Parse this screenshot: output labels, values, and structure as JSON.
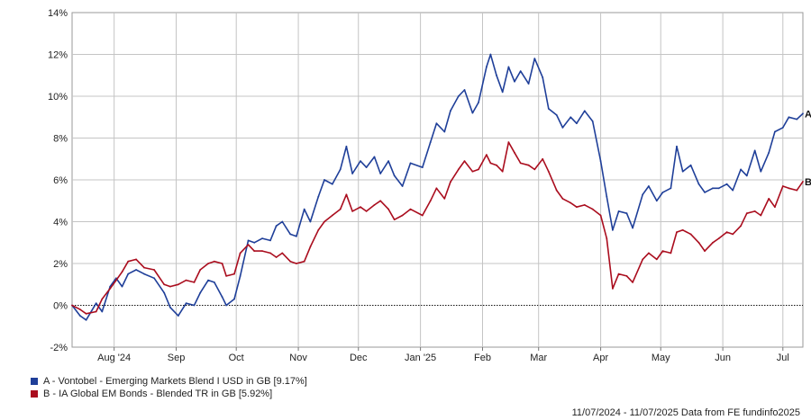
{
  "chart_data": {
    "type": "line",
    "y_unit": "%",
    "ylim": [
      -2,
      14
    ],
    "yticks": [
      "-2%",
      "0%",
      "2%",
      "4%",
      "6%",
      "8%",
      "10%",
      "12%",
      "14%"
    ],
    "x_start": "11/07/2024",
    "x_end": "11/07/2025",
    "xticks": [
      {
        "label": "Aug '24",
        "date": "2024-08-01"
      },
      {
        "label": "Sep",
        "date": "2024-09-01"
      },
      {
        "label": "Oct",
        "date": "2024-10-01"
      },
      {
        "label": "Nov",
        "date": "2024-11-01"
      },
      {
        "label": "Dec",
        "date": "2024-12-01"
      },
      {
        "label": "Jan '25",
        "date": "2025-01-01"
      },
      {
        "label": "Feb",
        "date": "2025-02-01"
      },
      {
        "label": "Mar",
        "date": "2025-03-01"
      },
      {
        "label": "Apr",
        "date": "2025-04-01"
      },
      {
        "label": "May",
        "date": "2025-05-01"
      },
      {
        "label": "Jun",
        "date": "2025-06-01"
      },
      {
        "label": "Jul",
        "date": "2025-07-01"
      }
    ],
    "grid": true,
    "series": [
      {
        "name": "A - Vontobel - Emerging Markets Blend I USD in GB [9.17%]",
        "end_label": "A",
        "color": "#1f3f99",
        "points": [
          [
            "2024-07-11",
            0
          ],
          [
            "2024-07-15",
            -0.5
          ],
          [
            "2024-07-18",
            -0.7
          ],
          [
            "2024-07-23",
            0.1
          ],
          [
            "2024-07-26",
            -0.3
          ],
          [
            "2024-07-30",
            0.9
          ],
          [
            "2024-08-02",
            1.3
          ],
          [
            "2024-08-05",
            0.9
          ],
          [
            "2024-08-08",
            1.5
          ],
          [
            "2024-08-12",
            1.7
          ],
          [
            "2024-08-16",
            1.5
          ],
          [
            "2024-08-21",
            1.3
          ],
          [
            "2024-08-26",
            0.6
          ],
          [
            "2024-08-29",
            -0.1
          ],
          [
            "2024-09-02",
            -0.5
          ],
          [
            "2024-09-06",
            0.1
          ],
          [
            "2024-09-10",
            0.0
          ],
          [
            "2024-09-13",
            0.6
          ],
          [
            "2024-09-17",
            1.2
          ],
          [
            "2024-09-20",
            1.1
          ],
          [
            "2024-09-24",
            0.4
          ],
          [
            "2024-09-26",
            0.0
          ],
          [
            "2024-09-30",
            0.3
          ],
          [
            "2024-10-03",
            1.4
          ],
          [
            "2024-10-07",
            3.1
          ],
          [
            "2024-10-10",
            3.0
          ],
          [
            "2024-10-14",
            3.2
          ],
          [
            "2024-10-18",
            3.1
          ],
          [
            "2024-10-21",
            3.8
          ],
          [
            "2024-10-24",
            4.0
          ],
          [
            "2024-10-28",
            3.4
          ],
          [
            "2024-10-31",
            3.3
          ],
          [
            "2024-11-04",
            4.6
          ],
          [
            "2024-11-07",
            4.0
          ],
          [
            "2024-11-11",
            5.2
          ],
          [
            "2024-11-14",
            6.0
          ],
          [
            "2024-11-18",
            5.8
          ],
          [
            "2024-11-22",
            6.5
          ],
          [
            "2024-11-25",
            7.6
          ],
          [
            "2024-11-28",
            6.3
          ],
          [
            "2024-12-02",
            6.9
          ],
          [
            "2024-12-05",
            6.6
          ],
          [
            "2024-12-09",
            7.1
          ],
          [
            "2024-12-12",
            6.3
          ],
          [
            "2024-12-16",
            6.9
          ],
          [
            "2024-12-19",
            6.2
          ],
          [
            "2024-12-23",
            5.7
          ],
          [
            "2024-12-27",
            6.8
          ],
          [
            "2025-01-02",
            6.6
          ],
          [
            "2025-01-06",
            7.8
          ],
          [
            "2025-01-09",
            8.7
          ],
          [
            "2025-01-13",
            8.3
          ],
          [
            "2025-01-16",
            9.3
          ],
          [
            "2025-01-20",
            10.0
          ],
          [
            "2025-01-23",
            10.3
          ],
          [
            "2025-01-27",
            9.2
          ],
          [
            "2025-01-30",
            9.7
          ],
          [
            "2025-02-03",
            11.4
          ],
          [
            "2025-02-05",
            12.0
          ],
          [
            "2025-02-08",
            11.0
          ],
          [
            "2025-02-11",
            10.2
          ],
          [
            "2025-02-14",
            11.4
          ],
          [
            "2025-02-17",
            10.7
          ],
          [
            "2025-02-20",
            11.2
          ],
          [
            "2025-02-24",
            10.6
          ],
          [
            "2025-02-27",
            11.8
          ],
          [
            "2025-03-03",
            10.9
          ],
          [
            "2025-03-06",
            9.4
          ],
          [
            "2025-03-10",
            9.1
          ],
          [
            "2025-03-13",
            8.5
          ],
          [
            "2025-03-17",
            9.0
          ],
          [
            "2025-03-20",
            8.7
          ],
          [
            "2025-03-24",
            9.3
          ],
          [
            "2025-03-28",
            8.8
          ],
          [
            "2025-04-01",
            6.9
          ],
          [
            "2025-04-04",
            5.2
          ],
          [
            "2025-04-07",
            3.6
          ],
          [
            "2025-04-10",
            4.5
          ],
          [
            "2025-04-14",
            4.4
          ],
          [
            "2025-04-17",
            3.7
          ],
          [
            "2025-04-22",
            5.3
          ],
          [
            "2025-04-25",
            5.7
          ],
          [
            "2025-04-29",
            5.0
          ],
          [
            "2025-05-02",
            5.4
          ],
          [
            "2025-05-06",
            5.6
          ],
          [
            "2025-05-09",
            7.6
          ],
          [
            "2025-05-12",
            6.4
          ],
          [
            "2025-05-16",
            6.7
          ],
          [
            "2025-05-20",
            5.8
          ],
          [
            "2025-05-23",
            5.4
          ],
          [
            "2025-05-27",
            5.6
          ],
          [
            "2025-05-30",
            5.6
          ],
          [
            "2025-06-03",
            5.8
          ],
          [
            "2025-06-06",
            5.5
          ],
          [
            "2025-06-10",
            6.5
          ],
          [
            "2025-06-13",
            6.2
          ],
          [
            "2025-06-17",
            7.4
          ],
          [
            "2025-06-20",
            6.4
          ],
          [
            "2025-06-24",
            7.3
          ],
          [
            "2025-06-27",
            8.3
          ],
          [
            "2025-07-01",
            8.5
          ],
          [
            "2025-07-04",
            9.0
          ],
          [
            "2025-07-08",
            8.9
          ],
          [
            "2025-07-11",
            9.17
          ]
        ]
      },
      {
        "name": "B - IA Global EM Bonds - Blended TR in GB [5.92%]",
        "end_label": "B",
        "color": "#aa0d1e",
        "points": [
          [
            "2024-07-11",
            0
          ],
          [
            "2024-07-15",
            -0.2
          ],
          [
            "2024-07-18",
            -0.4
          ],
          [
            "2024-07-23",
            -0.3
          ],
          [
            "2024-07-26",
            0.3
          ],
          [
            "2024-07-30",
            0.8
          ],
          [
            "2024-08-02",
            1.2
          ],
          [
            "2024-08-05",
            1.6
          ],
          [
            "2024-08-08",
            2.1
          ],
          [
            "2024-08-12",
            2.2
          ],
          [
            "2024-08-16",
            1.8
          ],
          [
            "2024-08-21",
            1.7
          ],
          [
            "2024-08-26",
            1.0
          ],
          [
            "2024-08-29",
            0.9
          ],
          [
            "2024-09-02",
            1.0
          ],
          [
            "2024-09-06",
            1.2
          ],
          [
            "2024-09-10",
            1.1
          ],
          [
            "2024-09-13",
            1.7
          ],
          [
            "2024-09-17",
            2.0
          ],
          [
            "2024-09-20",
            2.1
          ],
          [
            "2024-09-24",
            2.0
          ],
          [
            "2024-09-26",
            1.4
          ],
          [
            "2024-09-30",
            1.5
          ],
          [
            "2024-10-03",
            2.5
          ],
          [
            "2024-10-07",
            2.9
          ],
          [
            "2024-10-10",
            2.6
          ],
          [
            "2024-10-14",
            2.6
          ],
          [
            "2024-10-18",
            2.5
          ],
          [
            "2024-10-21",
            2.3
          ],
          [
            "2024-10-24",
            2.5
          ],
          [
            "2024-10-28",
            2.1
          ],
          [
            "2024-10-31",
            2.0
          ],
          [
            "2024-11-04",
            2.1
          ],
          [
            "2024-11-07",
            2.8
          ],
          [
            "2024-11-11",
            3.6
          ],
          [
            "2024-11-14",
            4.0
          ],
          [
            "2024-11-18",
            4.3
          ],
          [
            "2024-11-22",
            4.6
          ],
          [
            "2024-11-25",
            5.3
          ],
          [
            "2024-11-28",
            4.5
          ],
          [
            "2024-12-02",
            4.7
          ],
          [
            "2024-12-05",
            4.5
          ],
          [
            "2024-12-09",
            4.8
          ],
          [
            "2024-12-12",
            5.0
          ],
          [
            "2024-12-16",
            4.6
          ],
          [
            "2024-12-19",
            4.1
          ],
          [
            "2024-12-23",
            4.3
          ],
          [
            "2024-12-27",
            4.6
          ],
          [
            "2025-01-02",
            4.3
          ],
          [
            "2025-01-06",
            5.0
          ],
          [
            "2025-01-09",
            5.6
          ],
          [
            "2025-01-13",
            5.1
          ],
          [
            "2025-01-16",
            5.9
          ],
          [
            "2025-01-20",
            6.5
          ],
          [
            "2025-01-23",
            6.9
          ],
          [
            "2025-01-27",
            6.4
          ],
          [
            "2025-01-30",
            6.5
          ],
          [
            "2025-02-03",
            7.2
          ],
          [
            "2025-02-05",
            6.8
          ],
          [
            "2025-02-08",
            6.7
          ],
          [
            "2025-02-11",
            6.4
          ],
          [
            "2025-02-14",
            7.8
          ],
          [
            "2025-02-17",
            7.3
          ],
          [
            "2025-02-20",
            6.8
          ],
          [
            "2025-02-24",
            6.7
          ],
          [
            "2025-02-27",
            6.5
          ],
          [
            "2025-03-03",
            7.0
          ],
          [
            "2025-03-06",
            6.4
          ],
          [
            "2025-03-10",
            5.5
          ],
          [
            "2025-03-13",
            5.1
          ],
          [
            "2025-03-17",
            4.9
          ],
          [
            "2025-03-20",
            4.7
          ],
          [
            "2025-03-24",
            4.8
          ],
          [
            "2025-03-28",
            4.6
          ],
          [
            "2025-04-01",
            4.3
          ],
          [
            "2025-04-04",
            3.2
          ],
          [
            "2025-04-07",
            0.8
          ],
          [
            "2025-04-10",
            1.5
          ],
          [
            "2025-04-14",
            1.4
          ],
          [
            "2025-04-17",
            1.1
          ],
          [
            "2025-04-22",
            2.2
          ],
          [
            "2025-04-25",
            2.5
          ],
          [
            "2025-04-29",
            2.2
          ],
          [
            "2025-05-02",
            2.6
          ],
          [
            "2025-05-06",
            2.5
          ],
          [
            "2025-05-09",
            3.5
          ],
          [
            "2025-05-12",
            3.6
          ],
          [
            "2025-05-16",
            3.4
          ],
          [
            "2025-05-20",
            3.0
          ],
          [
            "2025-05-23",
            2.6
          ],
          [
            "2025-05-27",
            3.0
          ],
          [
            "2025-05-30",
            3.2
          ],
          [
            "2025-06-03",
            3.5
          ],
          [
            "2025-06-06",
            3.4
          ],
          [
            "2025-06-10",
            3.8
          ],
          [
            "2025-06-13",
            4.4
          ],
          [
            "2025-06-17",
            4.5
          ],
          [
            "2025-06-20",
            4.3
          ],
          [
            "2025-06-24",
            5.1
          ],
          [
            "2025-06-27",
            4.7
          ],
          [
            "2025-07-01",
            5.7
          ],
          [
            "2025-07-04",
            5.6
          ],
          [
            "2025-07-08",
            5.5
          ],
          [
            "2025-07-11",
            5.92
          ]
        ]
      }
    ]
  },
  "footer": {
    "text": "11/07/2024 - 11/07/2025 Data from FE fundinfo2025"
  }
}
